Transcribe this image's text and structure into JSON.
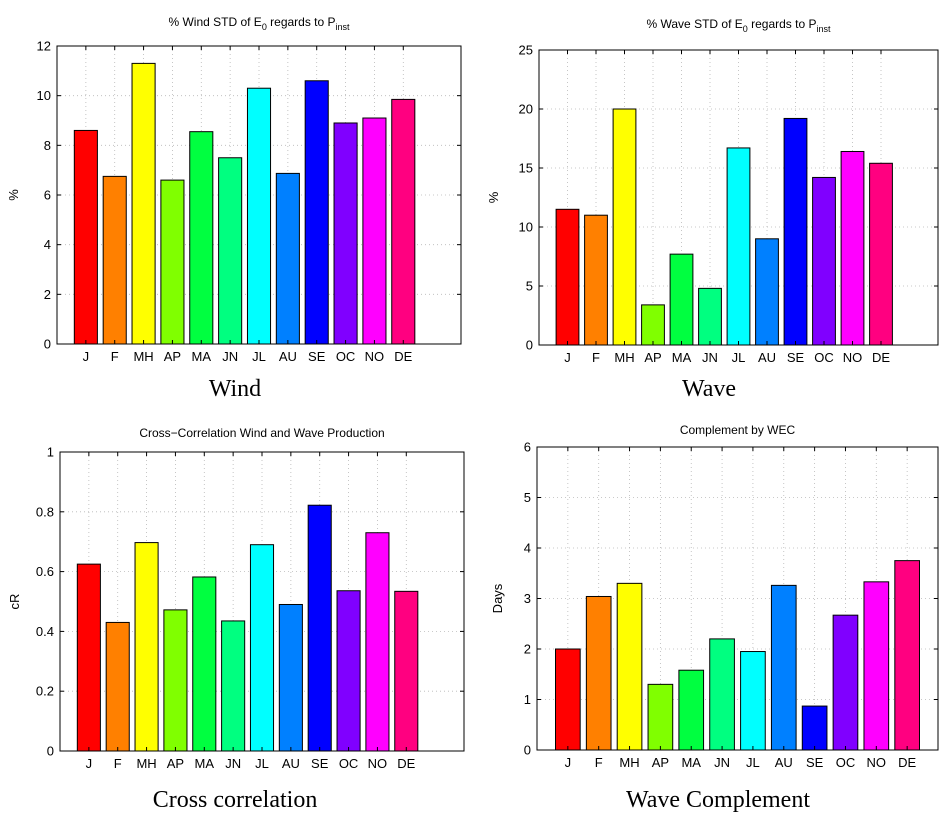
{
  "chart_data": [
    {
      "type": "bar",
      "title": "% Wind STD of E_0 regards to P_inst",
      "title_parts": {
        "pre": "% Wind STD of E",
        "sub1": "0",
        "mid": " regards to P",
        "sub2": "inst"
      },
      "ylabel": "%",
      "caption": "Wind",
      "categories": [
        "J",
        "F",
        "MH",
        "AP",
        "MA",
        "JN",
        "JL",
        "AU",
        "SE",
        "OC",
        "NO",
        "DE"
      ],
      "values": [
        8.6,
        6.75,
        11.3,
        6.6,
        8.55,
        7.5,
        10.3,
        6.87,
        10.6,
        8.9,
        9.1,
        9.85
      ],
      "ylim": [
        0,
        12
      ],
      "yticks": [
        0,
        2,
        4,
        6,
        8,
        10,
        12
      ],
      "xlim": [
        0,
        14
      ],
      "grid": true
    },
    {
      "type": "bar",
      "title": "% Wave STD of E_0 regards to P_inst",
      "title_parts": {
        "pre": "% Wave STD of E",
        "sub1": "0",
        "mid": " regards to P",
        "sub2": "inst"
      },
      "ylabel": "%",
      "caption": "Wave",
      "categories": [
        "J",
        "F",
        "MH",
        "AP",
        "MA",
        "JN",
        "JL",
        "AU",
        "SE",
        "OC",
        "NO",
        "DE"
      ],
      "values": [
        11.5,
        11.0,
        20.0,
        3.4,
        7.7,
        4.8,
        16.7,
        9.0,
        19.2,
        14.2,
        16.4,
        15.4
      ],
      "ylim": [
        0,
        25
      ],
      "yticks": [
        0,
        5,
        10,
        15,
        20,
        25
      ],
      "xlim": [
        0,
        14
      ],
      "grid": true
    },
    {
      "type": "bar",
      "title": "Cross−Correlation Wind and Wave Production",
      "ylabel": "cR",
      "caption": "Cross correlation",
      "categories": [
        "J",
        "F",
        "MH",
        "AP",
        "MA",
        "JN",
        "JL",
        "AU",
        "SE",
        "OC",
        "NO",
        "DE"
      ],
      "values": [
        0.625,
        0.43,
        0.697,
        0.472,
        0.582,
        0.435,
        0.69,
        0.49,
        0.822,
        0.536,
        0.73,
        0.534
      ],
      "ylim": [
        0,
        1
      ],
      "yticks": [
        0,
        0.2,
        0.4,
        0.6,
        0.8,
        1
      ],
      "xlim": [
        0,
        14
      ],
      "grid": true
    },
    {
      "type": "bar",
      "title": "Complement by WEC",
      "ylabel": "Days",
      "caption": "Wave Complement",
      "categories": [
        "J",
        "F",
        "MH",
        "AP",
        "MA",
        "JN",
        "JL",
        "AU",
        "SE",
        "OC",
        "NO",
        "DE"
      ],
      "values": [
        2.0,
        3.04,
        3.3,
        1.3,
        1.58,
        2.2,
        1.95,
        3.26,
        0.87,
        2.67,
        3.33,
        3.75
      ],
      "ylim": [
        0,
        6
      ],
      "yticks": [
        0,
        1,
        2,
        3,
        4,
        5,
        6
      ],
      "xlim": [
        0,
        13
      ],
      "grid": true
    }
  ],
  "colors": [
    "#ff0000",
    "#ff8000",
    "#ffff00",
    "#80ff00",
    "#00ff40",
    "#00ff80",
    "#00ffff",
    "#0080ff",
    "#0000ff",
    "#8000ff",
    "#ff00ff",
    "#ff0080"
  ]
}
